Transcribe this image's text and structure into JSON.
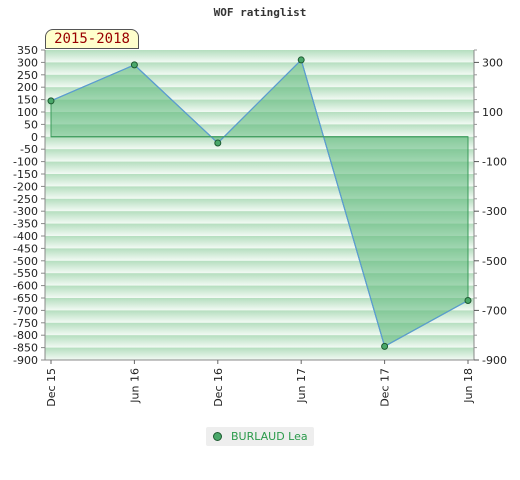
{
  "title": "WOF ratinglist",
  "badge": "2015-2018",
  "chart_data": {
    "type": "area",
    "title": "WOF ratinglist",
    "x": [
      "Dec 15",
      "Jun 16",
      "Dec 16",
      "Jun 17",
      "Dec 17",
      "Jun 18"
    ],
    "series": [
      {
        "name": "BURLAUD Lea",
        "values": [
          145,
          290,
          -25,
          310,
          -845,
          -660
        ]
      }
    ],
    "ylim": [
      -900,
      350
    ],
    "y_left_ticks": [
      350,
      300,
      250,
      200,
      150,
      100,
      50,
      0,
      -50,
      -100,
      -150,
      -200,
      -250,
      -300,
      -350,
      -400,
      -450,
      -500,
      -550,
      -600,
      -650,
      -700,
      -750,
      -800,
      -850,
      -900
    ],
    "y_right_ticks": [
      300,
      100,
      -100,
      -300,
      -500,
      -700,
      -900
    ],
    "grid": "horizontal bands",
    "legend": "bottom-center"
  },
  "colors": {
    "fill": "#5cb87a",
    "line": "#5b9bd5",
    "marker": "#4aa86a",
    "band_dark": "#a9d9b5",
    "band_light": "#f2faf4"
  }
}
